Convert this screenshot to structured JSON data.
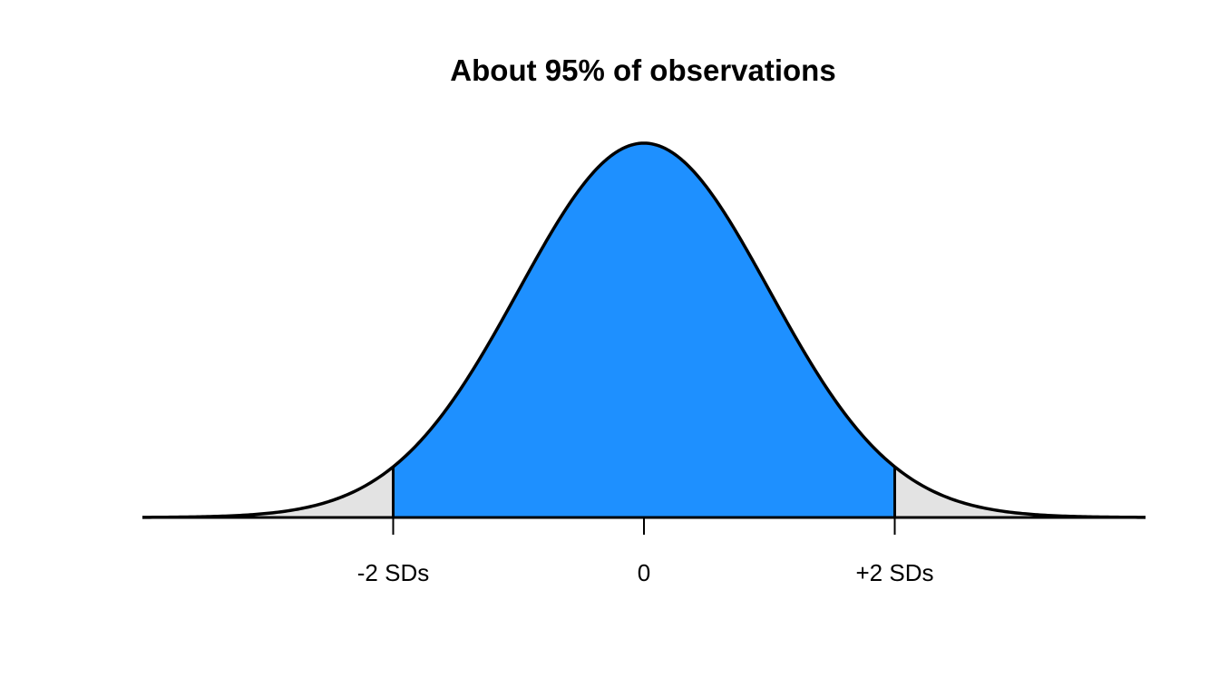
{
  "chart_data": {
    "type": "area",
    "title": "About 95% of observations",
    "xlabel": "",
    "ylabel": "",
    "xlim": [
      -4,
      4
    ],
    "ylim": [
      0,
      0.3989
    ],
    "distribution": "normal",
    "mean": 0,
    "sd": 1,
    "shaded_region": [
      -2,
      2
    ],
    "ticks": [
      {
        "x": -2,
        "label": "-2 SDs"
      },
      {
        "x": 0,
        "label": "0"
      },
      {
        "x": 2,
        "label": "+2 SDs"
      }
    ],
    "grid": false,
    "colors": {
      "center_fill": "#1e90ff",
      "tail_fill": "#e3e3e3",
      "curve": "#000000"
    }
  }
}
